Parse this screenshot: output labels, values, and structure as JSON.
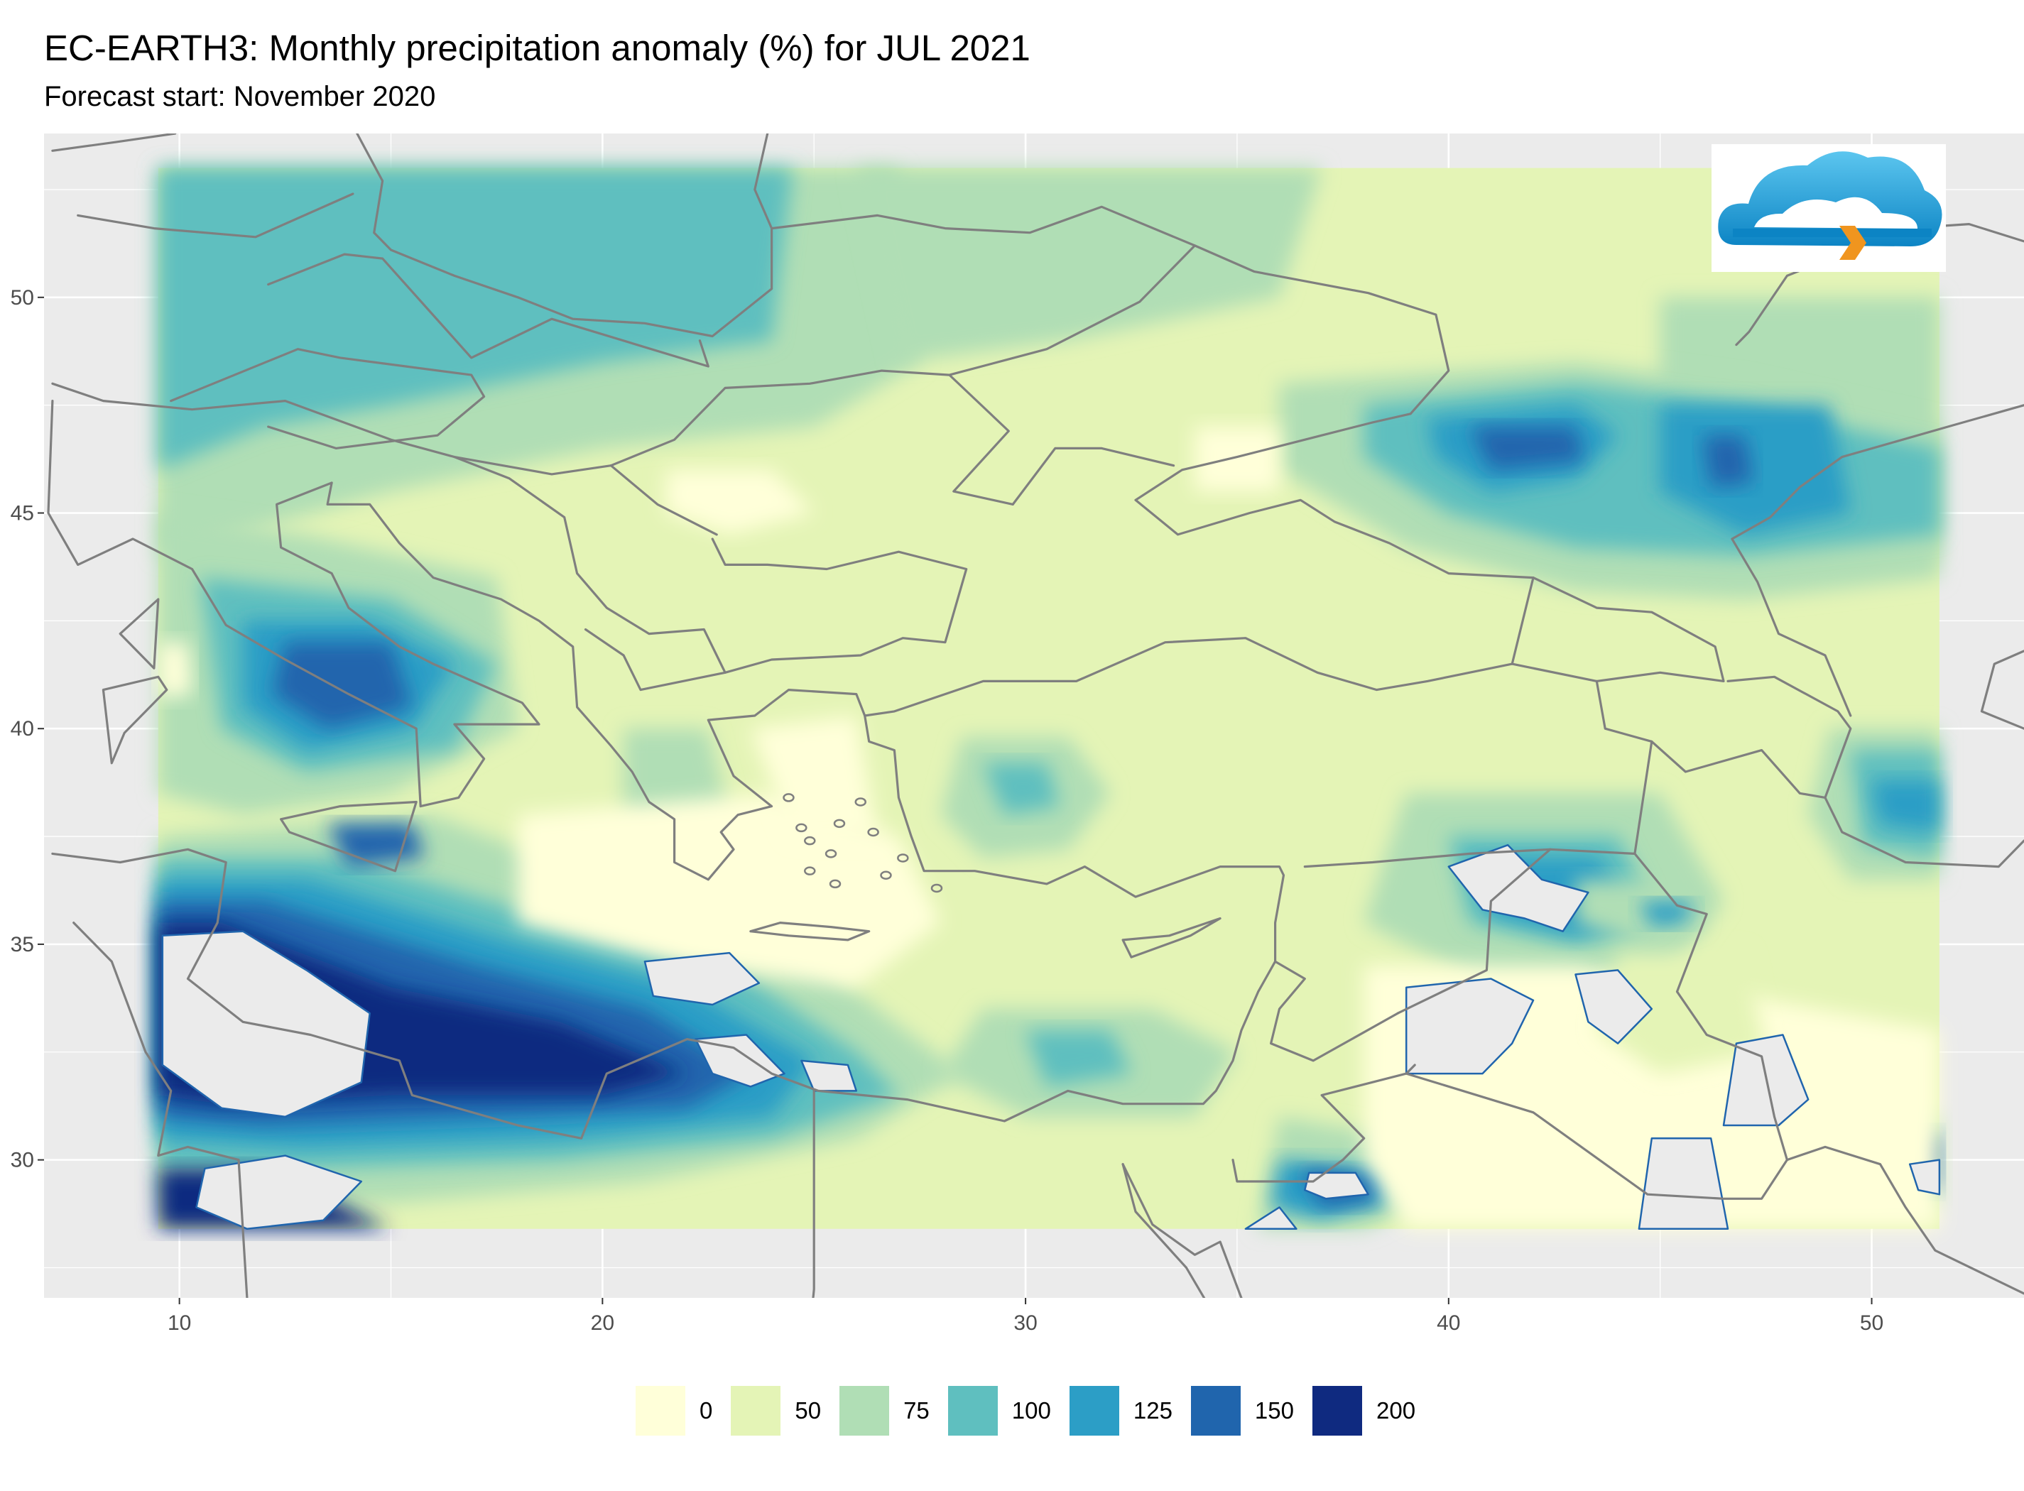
{
  "title": "EC-EARTH3: Monthly precipitation anomaly (%) for JUL 2021",
  "subtitle": "Forecast start: November 2020",
  "colors": {
    "panel_bg": "#ebebeb",
    "grid_major": "#ffffff",
    "no_data": "#ebebeb",
    "borders": "#7f7f7f",
    "logo_cloud": "#1a9ad6",
    "logo_arrow": "#f0951f"
  },
  "logo": {
    "icon": "cloud-logo-icon"
  },
  "chart_data": {
    "type": "heatmap",
    "xlim": [
      6.8,
      53.6
    ],
    "ylim": [
      26.8,
      53.8
    ],
    "x_ticks": [
      10,
      20,
      30,
      40,
      50
    ],
    "y_ticks": [
      30,
      35,
      40,
      45,
      50
    ],
    "x_tick_labels": [
      "10",
      "20",
      "30",
      "40",
      "50"
    ],
    "y_tick_labels": [
      "30",
      "35",
      "40",
      "45",
      "50"
    ],
    "data_extent": {
      "lon": [
        9.5,
        51.6
      ],
      "lat": [
        28.4,
        53.0
      ]
    },
    "legend": [
      {
        "label": "0",
        "color": "#ffffd9"
      },
      {
        "label": "50",
        "color": "#e4f4b6"
      },
      {
        "label": "75",
        "color": "#b0deb5"
      },
      {
        "label": "100",
        "color": "#5fbfbf"
      },
      {
        "label": "125",
        "color": "#2c9ec6"
      },
      {
        "label": "150",
        "color": "#2065ad"
      },
      {
        "label": "200",
        "color": "#0f2a80"
      }
    ],
    "legend_position": "bottom"
  }
}
